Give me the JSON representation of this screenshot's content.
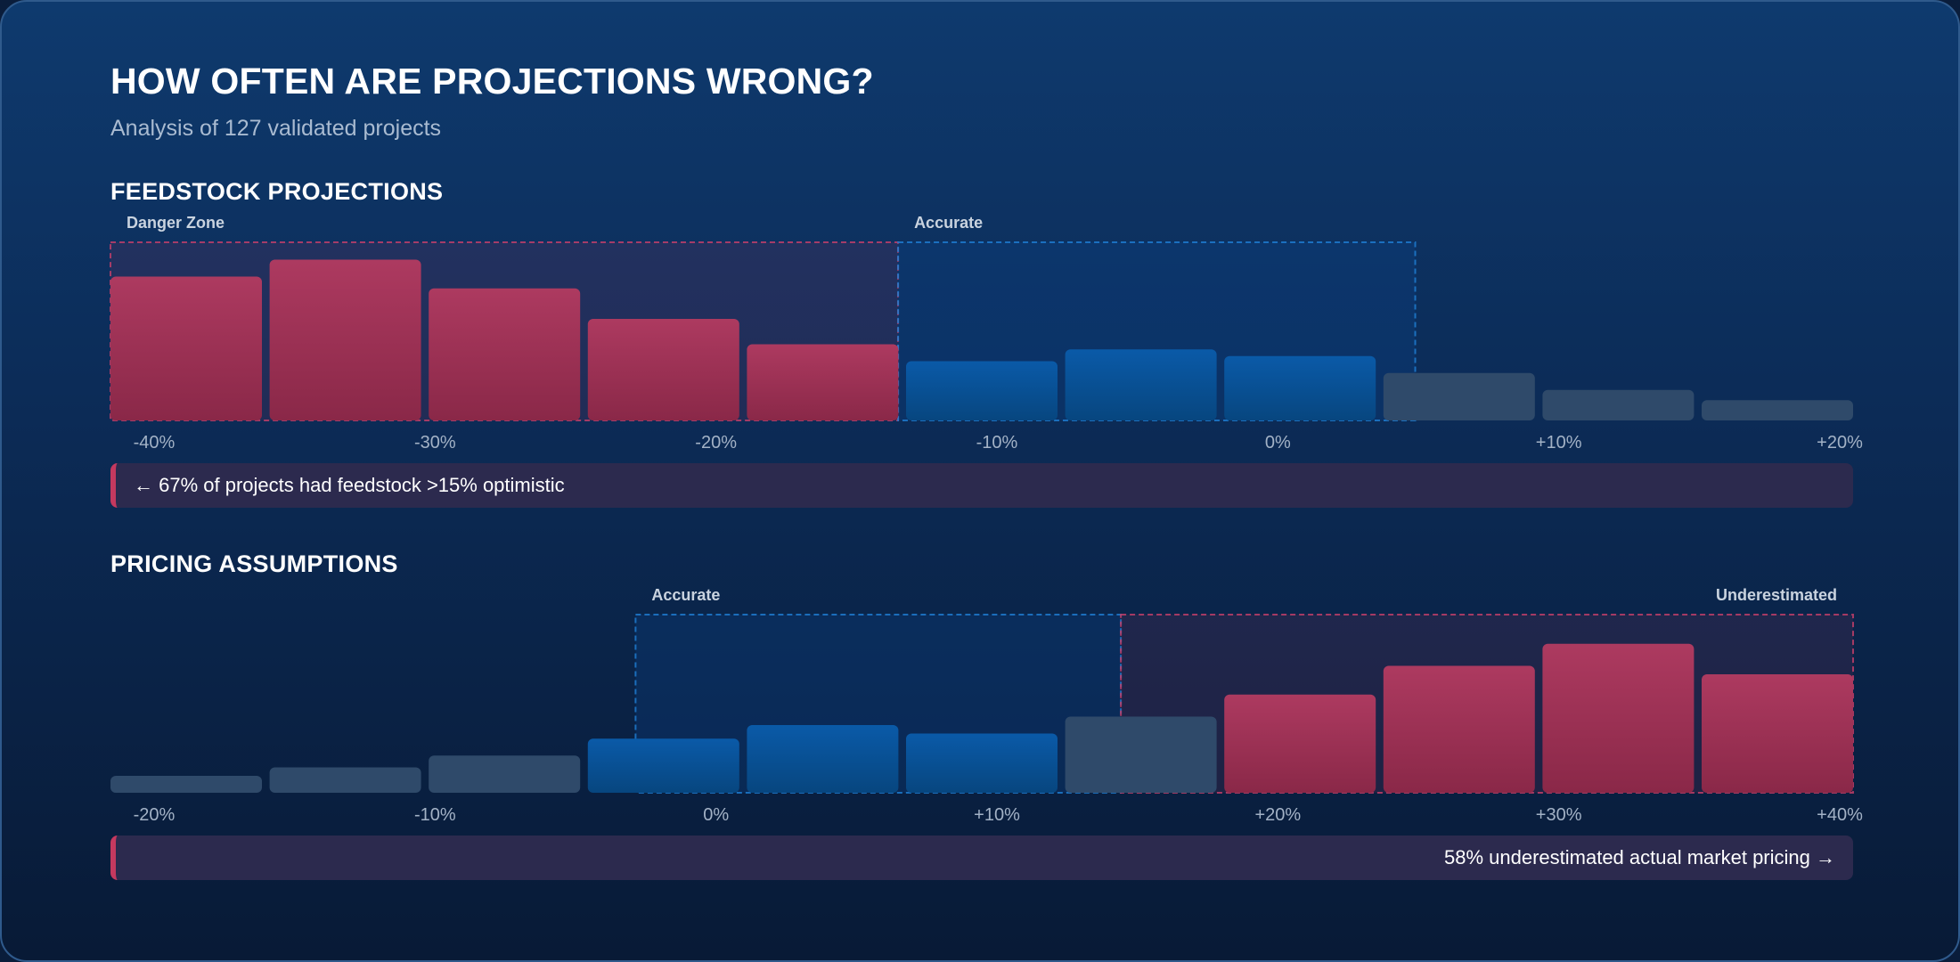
{
  "header": {
    "title": "HOW OFTEN ARE PROJECTIONS WRONG?",
    "subtitle": "Analysis of 127 validated projects"
  },
  "colors": {
    "danger": "#a8385c",
    "accurate": "#0a5aa8",
    "neutral": "#2f4a6a",
    "danger_border": "#c8406a",
    "accurate_border": "#1f7fd6"
  },
  "chart_data": [
    {
      "type": "bar",
      "title": "FEEDSTOCK PROJECTIONS",
      "tick_labels": [
        "-40%",
        "-30%",
        "-20%",
        "-10%",
        "0%",
        "+10%",
        "+20%"
      ],
      "values": [
        85,
        95,
        78,
        60,
        45,
        35,
        42,
        38,
        28,
        18,
        12
      ],
      "bar_zones": [
        "danger",
        "danger",
        "danger",
        "danger",
        "danger",
        "accurate",
        "accurate",
        "accurate",
        "neutral",
        "neutral",
        "neutral"
      ],
      "ylim": [
        0,
        100
      ],
      "zones": [
        {
          "label": "Danger Zone",
          "kind": "danger",
          "from_bar": 0,
          "to_bar": 4.95,
          "label_align": "left"
        },
        {
          "label": "Accurate",
          "kind": "accurate",
          "from_bar": 4.95,
          "to_bar": 8.2,
          "label_align": "left"
        }
      ],
      "callout": {
        "text": "← 67% of projects had feedstock >15% optimistic",
        "align": "left"
      }
    },
    {
      "type": "bar",
      "title": "PRICING ASSUMPTIONS",
      "tick_labels": [
        "-20%",
        "-10%",
        "0%",
        "+10%",
        "+20%",
        "+30%",
        "+40%"
      ],
      "values": [
        10,
        15,
        22,
        32,
        40,
        35,
        45,
        58,
        75,
        88,
        70
      ],
      "bar_zones": [
        "neutral",
        "neutral",
        "neutral",
        "accurate",
        "accurate",
        "accurate",
        "neutral",
        "danger",
        "danger",
        "danger",
        "danger"
      ],
      "ylim": [
        0,
        100
      ],
      "zones": [
        {
          "label": "Accurate",
          "kind": "accurate",
          "from_bar": 3.3,
          "to_bar": 6.35,
          "label_align": "left"
        },
        {
          "label": "Underestimated",
          "kind": "danger",
          "from_bar": 6.35,
          "to_bar": 11,
          "label_align": "right"
        }
      ],
      "callout": {
        "text": "58% underestimated actual market pricing →",
        "align": "right"
      }
    }
  ]
}
